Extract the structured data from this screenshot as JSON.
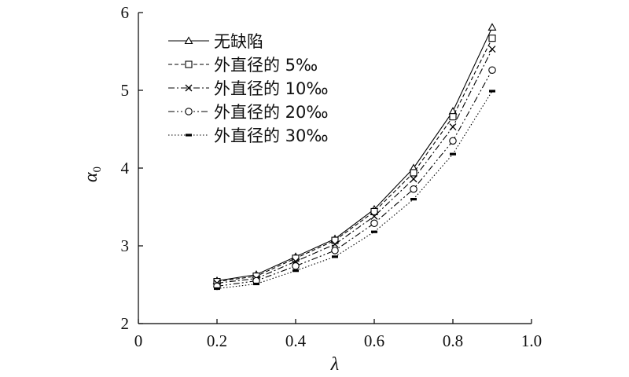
{
  "chart_data": {
    "type": "line",
    "title": "",
    "xlabel": "λ",
    "ylabel": "α",
    "ylabel_subscript": "0",
    "xlim": [
      0,
      1.0
    ],
    "ylim": [
      2,
      6
    ],
    "x_ticks": [
      0,
      0.2,
      0.4,
      0.6,
      0.8,
      1.0
    ],
    "x_tick_labels": [
      "0",
      "0.2",
      "0.4",
      "0.6",
      "0.8",
      "1.0"
    ],
    "y_ticks": [
      2,
      3,
      4,
      5,
      6
    ],
    "y_tick_labels": [
      "2",
      "3",
      "4",
      "5",
      "6"
    ],
    "grid": false,
    "legend_position": "top-left",
    "x": [
      0.2,
      0.3,
      0.4,
      0.5,
      0.6,
      0.7,
      0.8,
      0.9
    ],
    "series": [
      {
        "name": "无缺陷",
        "marker": "triangle",
        "dash": "solid",
        "values": [
          2.55,
          2.63,
          2.86,
          3.09,
          3.47,
          4.0,
          4.73,
          5.81
        ]
      },
      {
        "name": "外直径的 5‰",
        "marker": "square",
        "dash": "dashed",
        "values": [
          2.54,
          2.61,
          2.84,
          3.07,
          3.44,
          3.94,
          4.66,
          5.67
        ]
      },
      {
        "name": "外直径的 10‰",
        "marker": "x",
        "dash": "dash-dot",
        "values": [
          2.52,
          2.58,
          2.8,
          3.02,
          3.38,
          3.86,
          4.53,
          5.53
        ]
      },
      {
        "name": "外直径的 20‰",
        "marker": "circle",
        "dash": "dash-dot-dot",
        "values": [
          2.48,
          2.55,
          2.74,
          2.94,
          3.29,
          3.73,
          4.35,
          5.26
        ]
      },
      {
        "name": "外直径的 30‰",
        "marker": "bar",
        "dash": "dotted",
        "values": [
          2.45,
          2.51,
          2.68,
          2.86,
          3.18,
          3.6,
          4.18,
          4.99
        ]
      }
    ]
  }
}
